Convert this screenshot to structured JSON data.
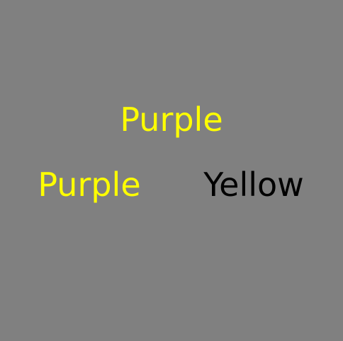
{
  "words": {
    "top": {
      "text": "Purple",
      "color": "#ffff00"
    },
    "left": {
      "text": "Purple",
      "color": "#ffff00"
    },
    "right": {
      "text": "Yellow",
      "color": "#000000"
    }
  },
  "background_color": "#808080"
}
